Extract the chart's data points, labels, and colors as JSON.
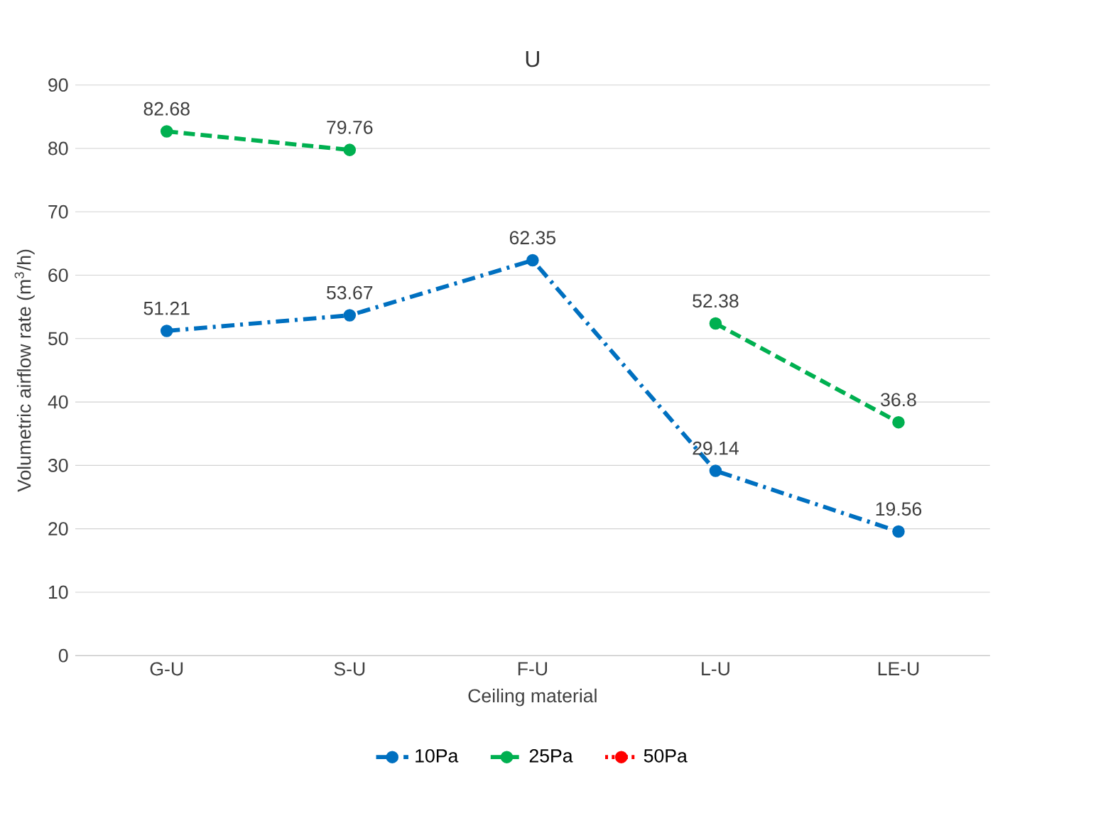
{
  "chart_data": {
    "type": "line",
    "title": "U",
    "xlabel": "Ceiling material",
    "ylabel": "Volumetric airflow rate (m$^{3}$/h)",
    "categories": [
      "G-U",
      "S-U",
      "F-U",
      "L-U",
      "LE-U"
    ],
    "series": [
      {
        "name": "10Pa",
        "color": "#0070c0",
        "values": [
          51.21,
          53.67,
          62.35,
          29.14,
          19.56
        ],
        "line_style": "dashdot"
      },
      {
        "name": "25Pa",
        "color": "#00b050",
        "values": [
          82.68,
          79.76,
          null,
          52.38,
          36.8
        ],
        "line_style": "dashed"
      },
      {
        "name": "50Pa",
        "color": "#ff0000",
        "values": [
          null,
          null,
          null,
          null,
          null
        ],
        "line_style": "dotted"
      }
    ],
    "ylim": [
      0,
      90
    ],
    "yticks": [
      0,
      10,
      20,
      30,
      40,
      50,
      60,
      70,
      80,
      90
    ],
    "grid": "y",
    "legend": "bottom",
    "marker": "circle",
    "data_labels": true
  }
}
